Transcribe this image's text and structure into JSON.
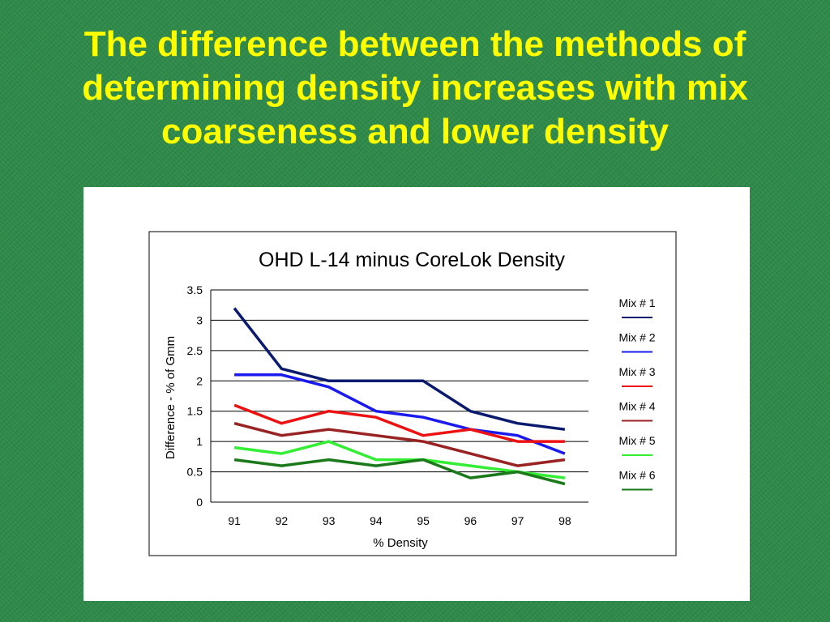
{
  "slide": {
    "title": "The difference between the methods of determining density increases with mix coarseness and lower density"
  },
  "colors": {
    "background": "#2f8a4a",
    "title": "#ffff00",
    "panel": "#ffffff"
  },
  "chart_data": {
    "type": "line",
    "title": "OHD L-14 minus CoreLok Density",
    "xlabel": "% Density",
    "ylabel": "Difference - % of Gmm",
    "categories": [
      "91",
      "92",
      "93",
      "94",
      "95",
      "96",
      "97",
      "98"
    ],
    "ylim": [
      0,
      3.5
    ],
    "yticks": [
      "0",
      "0.5",
      "1",
      "1.5",
      "2",
      "2.5",
      "3",
      "3.5"
    ],
    "grid": true,
    "legend_position": "right",
    "series": [
      {
        "name": "Mix # 1",
        "color": "#0a1a6e",
        "values": [
          3.2,
          2.2,
          2.0,
          2.0,
          2.0,
          1.5,
          1.3,
          1.2
        ]
      },
      {
        "name": "Mix # 2",
        "color": "#1a1aee",
        "values": [
          2.1,
          2.1,
          1.9,
          1.5,
          1.4,
          1.2,
          1.1,
          0.8
        ]
      },
      {
        "name": "Mix # 3",
        "color": "#ee1111",
        "values": [
          1.6,
          1.3,
          1.5,
          1.4,
          1.1,
          1.2,
          1.0,
          1.0
        ]
      },
      {
        "name": "Mix # 4",
        "color": "#992222",
        "values": [
          1.3,
          1.1,
          1.2,
          1.1,
          1.0,
          0.8,
          0.6,
          0.7
        ]
      },
      {
        "name": "Mix # 5",
        "color": "#33ee33",
        "values": [
          0.9,
          0.8,
          1.0,
          0.7,
          0.7,
          0.6,
          0.5,
          0.4
        ]
      },
      {
        "name": "Mix # 6",
        "color": "#1a7a1a",
        "values": [
          0.7,
          0.6,
          0.7,
          0.6,
          0.7,
          0.4,
          0.5,
          0.3
        ]
      }
    ]
  }
}
